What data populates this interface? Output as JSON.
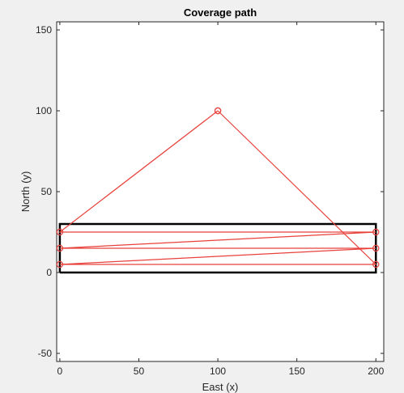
{
  "chart_data": {
    "type": "line",
    "title": "Coverage path",
    "xlabel": "East (x)",
    "ylabel": "North (y)",
    "xlim": [
      -2,
      205
    ],
    "ylim": [
      -55,
      155
    ],
    "xticks": [
      0,
      50,
      100,
      150,
      200
    ],
    "yticks": [
      -50,
      0,
      50,
      100,
      150
    ],
    "grid": false,
    "boundary": {
      "name": "",
      "color": "#000000",
      "x": [
        0,
        200,
        200,
        0,
        0
      ],
      "y": [
        0,
        0,
        30,
        30,
        0
      ]
    },
    "series": [
      {
        "name": "",
        "color": "#e8403a",
        "marker": "circle",
        "x": [
          100,
          200,
          0,
          200,
          0,
          200,
          0,
          100
        ],
        "y": [
          100,
          5,
          5,
          15,
          15,
          25,
          25,
          100
        ]
      }
    ]
  }
}
